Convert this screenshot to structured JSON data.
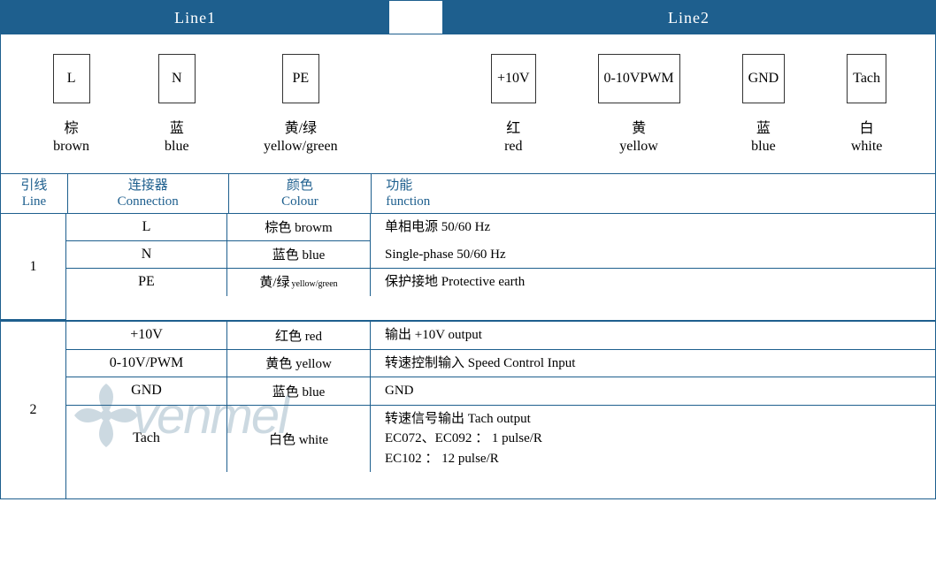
{
  "header": {
    "left": "Line1",
    "right": "Line2"
  },
  "terminals_line1": [
    {
      "box": "L",
      "cn": "棕",
      "en": "brown"
    },
    {
      "box": "N",
      "cn": "蓝",
      "en": "blue"
    },
    {
      "box": "PE",
      "cn": "黄/绿",
      "en": "yellow/green"
    }
  ],
  "terminals_line2": [
    {
      "box": "+10V",
      "cn": "红",
      "en": "red"
    },
    {
      "box": "0-10V\nPWM",
      "cn": "黄",
      "en": "yellow"
    },
    {
      "box": "GND",
      "cn": "蓝",
      "en": "blue"
    },
    {
      "box": "Tach",
      "cn": "白",
      "en": "white"
    }
  ],
  "table_headers": {
    "line": {
      "cn": "引线",
      "en": "Line"
    },
    "conn": {
      "cn": "连接器",
      "en": "Connection"
    },
    "colour": {
      "cn": "颜色",
      "en": "Colour"
    },
    "func": {
      "cn": "功能",
      "en": "function"
    }
  },
  "group1": {
    "line": "1",
    "rows": [
      {
        "conn": "L",
        "colour": "棕色 browm",
        "func_merge_top": true
      },
      {
        "conn": "N",
        "colour": "蓝色 blue",
        "func_merge_bottom": true
      },
      {
        "conn": "PE",
        "colour_cn": "黄/绿",
        "colour_en": "yellow/green",
        "func": "保护接地 Protective earth"
      }
    ],
    "merged_func": {
      "l1": "单相电源 50/60 Hz",
      "l2": "Single-phase 50/60 Hz"
    }
  },
  "group2": {
    "line": "2",
    "rows": [
      {
        "conn": "+10V",
        "colour": "红色 red",
        "func": "输出 +10V output"
      },
      {
        "conn": "0-10V/PWM",
        "colour": "黄色 yellow",
        "func": "转速控制输入 Speed Control Input"
      },
      {
        "conn": "GND",
        "colour": "蓝色 blue",
        "func": " GND"
      },
      {
        "conn": "Tach",
        "colour": "白色 white",
        "func_multi": [
          "转速信号输出 Tach output",
          "EC072、EC092 ： 1 pulse/R",
          "EC102 ： 12 pulse/R"
        ]
      }
    ]
  },
  "colors": {
    "header_bg": "#1e5f8e",
    "border": "#1e5f8e",
    "text": "#000000",
    "header_text_blue": "#1e5f8e"
  },
  "fonts": {
    "body_size": 16,
    "header_size": 18,
    "small_size": 10
  },
  "watermark_text": "vеnтеl"
}
